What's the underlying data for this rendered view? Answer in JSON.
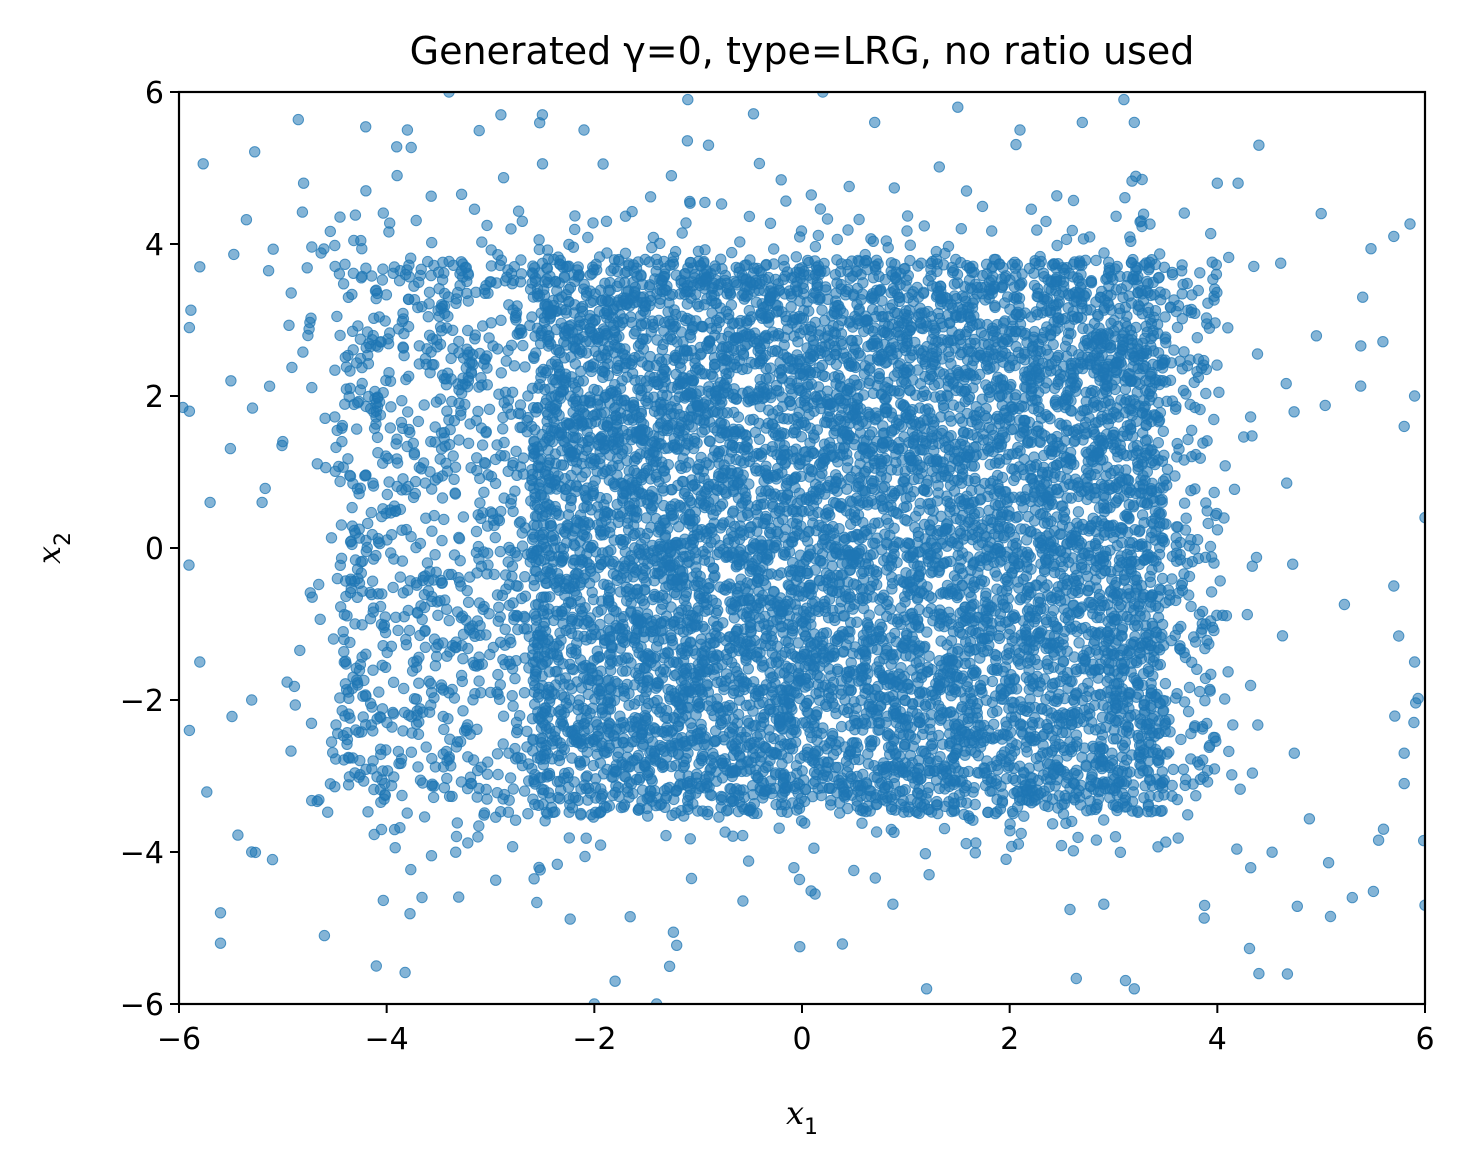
{
  "chart_data": {
    "type": "scatter",
    "title": "Generated γ=0, type=LRG, no ratio used",
    "xlabel": "x",
    "xlabel_sub": "1",
    "ylabel": "x",
    "ylabel_sub": "2",
    "xlim": [
      -6,
      6
    ],
    "ylim": [
      -6,
      6
    ],
    "xticks": [
      -6,
      -4,
      -2,
      0,
      2,
      4,
      6
    ],
    "yticks": [
      -6,
      -4,
      -2,
      0,
      2,
      4,
      6
    ],
    "xtick_labels": [
      "−6",
      "−4",
      "−2",
      "0",
      "2",
      "4",
      "6"
    ],
    "ytick_labels": [
      "−6",
      "−4",
      "−2",
      "0",
      "2",
      "4",
      "6"
    ],
    "grid": false,
    "color": "#1f77b4",
    "marker_alpha": 0.55,
    "series": [
      {
        "distribution": "uniform-like rectangular cloud",
        "core_x_range": [
          -4.5,
          4.0
        ],
        "core_y_range": [
          -3.3,
          3.8
        ],
        "dense_x_range": [
          -2.6,
          3.5
        ],
        "dense_y_range": [
          -3.5,
          3.8
        ],
        "outlier_x_range": [
          -6,
          6
        ],
        "outlier_y_range": [
          -6,
          6
        ],
        "sample_points": [
          [
            -5.8,
            3.7
          ],
          [
            -5.9,
            2.9
          ],
          [
            -5.5,
            2.2
          ],
          [
            -5.9,
            1.8
          ],
          [
            -5.7,
            0.6
          ],
          [
            -5.8,
            -1.5
          ],
          [
            -5.9,
            -2.4
          ],
          [
            -5.6,
            -4.8
          ],
          [
            -5.6,
            -5.2
          ],
          [
            -5.3,
            -4.0
          ],
          [
            -5.1,
            -4.1
          ],
          [
            -4.8,
            4.8
          ],
          [
            -5.3,
            -2.0
          ],
          [
            -5.2,
            0.6
          ],
          [
            -5.0,
            1.4
          ],
          [
            -3.8,
            5.5
          ],
          [
            -3.4,
            6.0
          ],
          [
            -2.9,
            5.7
          ],
          [
            -2.5,
            5.7
          ],
          [
            -2.1,
            5.5
          ],
          [
            -1.1,
            5.9
          ],
          [
            0.2,
            6.0
          ],
          [
            0.7,
            5.6
          ],
          [
            1.5,
            5.8
          ],
          [
            2.1,
            5.5
          ],
          [
            2.7,
            5.6
          ],
          [
            3.1,
            5.9
          ],
          [
            3.2,
            5.6
          ],
          [
            4.0,
            4.8
          ],
          [
            4.2,
            4.8
          ],
          [
            4.4,
            5.3
          ],
          [
            5.0,
            4.4
          ],
          [
            5.7,
            4.1
          ],
          [
            5.4,
            3.3
          ],
          [
            5.9,
            2.0
          ],
          [
            5.8,
            1.6
          ],
          [
            6.0,
            0.4
          ],
          [
            5.7,
            -0.5
          ],
          [
            5.9,
            -1.5
          ],
          [
            5.8,
            -2.7
          ],
          [
            5.8,
            -3.1
          ],
          [
            5.6,
            -3.7
          ],
          [
            6.0,
            -4.7
          ],
          [
            5.3,
            -4.6
          ],
          [
            4.4,
            -5.6
          ],
          [
            3.2,
            -5.8
          ],
          [
            1.2,
            -5.8
          ],
          [
            -1.8,
            -5.7
          ],
          [
            -1.4,
            -6.0
          ],
          [
            -2.0,
            -6.0
          ],
          [
            -4.1,
            -5.5
          ],
          [
            -4.6,
            -5.1
          ],
          [
            -3.9,
            4.9
          ],
          [
            -4.2,
            4.7
          ],
          [
            -0.9,
            5.3
          ]
        ]
      }
    ]
  }
}
